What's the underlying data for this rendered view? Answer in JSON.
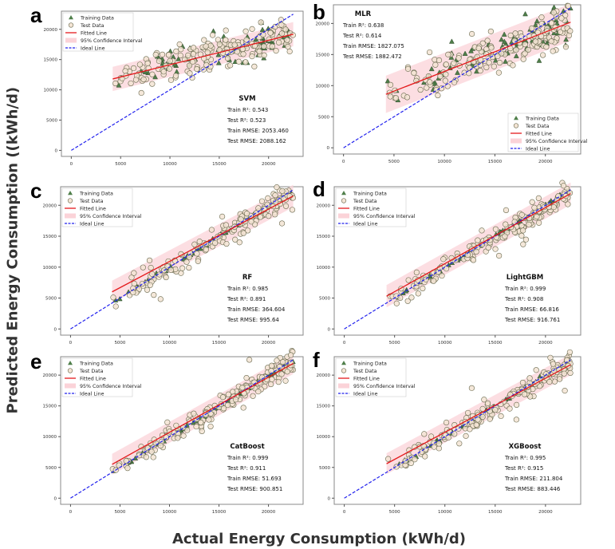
{
  "figure": {
    "ylabel": "Predicted Energy Consumption ((kWh/d)",
    "xlabel": "Actual Energy Consumption (kWh/d)"
  },
  "legend_labels": [
    "Training Data",
    "Test Data",
    "Fitted Line",
    "95% Confidence Interval",
    "Ideal Line"
  ],
  "colors": {
    "training": "#4f7f4a",
    "test_fill": "#f3e4d4",
    "test_edge": "#6b6b50",
    "fitted": "#e41a1c",
    "ci": "#fbd3d8",
    "ideal": "#2222ee"
  },
  "chart_data": [
    {
      "panel": "a",
      "type": "scatter",
      "title": "SVM",
      "metrics": [
        "Train R²:  0.543",
        "Test R²:  0.523",
        "Train RMSE:  2053.460",
        "Test RMSE:  2088.162"
      ],
      "xlim": [
        -1000,
        23500
      ],
      "ylim": [
        -1000,
        23000
      ],
      "xticks": [
        0,
        5000,
        10000,
        15000,
        20000
      ],
      "yticks": [
        0,
        5000,
        10000,
        15000,
        20000
      ],
      "fitted": [
        [
          4200,
          11800
        ],
        [
          22500,
          19200
        ]
      ],
      "ci_width": 2000,
      "ideal": [
        [
          0,
          0
        ],
        [
          22500,
          22500
        ]
      ],
      "legend": "top-left",
      "metrics_position": "bottom-right",
      "spread": 1500,
      "slope_fit": true
    },
    {
      "panel": "b",
      "type": "scatter",
      "title": "MLR",
      "metrics": [
        "Train R²:  0.638",
        "Test R²:  0.614",
        "Train RMSE:  1827.075",
        "Test RMSE:  1882.472"
      ],
      "xlim": [
        -1000,
        23500
      ],
      "ylim": [
        -1000,
        23000
      ],
      "xticks": [
        0,
        5000,
        10000,
        15000,
        20000
      ],
      "yticks": [
        0,
        5000,
        10000,
        15000,
        20000
      ],
      "fitted": [
        [
          4200,
          8600
        ],
        [
          22500,
          20200
        ]
      ],
      "ci_width": 3000,
      "ideal": [
        [
          0,
          0
        ],
        [
          22500,
          22500
        ]
      ],
      "legend": "bottom-right",
      "metrics_position": "top-left",
      "spread": 1700,
      "slope_fit": true
    },
    {
      "panel": "c",
      "type": "scatter",
      "title": "RF",
      "metrics": [
        "Train R²:  0.985",
        "Test R²:  0.891",
        "Train RMSE:  364.604",
        "Test RMSE:  995.64"
      ],
      "xlim": [
        -1000,
        23500
      ],
      "ylim": [
        -1000,
        23000
      ],
      "xticks": [
        0,
        5000,
        10000,
        15000,
        20000
      ],
      "yticks": [
        0,
        5000,
        10000,
        15000,
        20000
      ],
      "fitted": [
        [
          4200,
          6000
        ],
        [
          22500,
          21500
        ]
      ],
      "ci_width": 1800,
      "ideal": [
        [
          0,
          0
        ],
        [
          22500,
          22500
        ]
      ],
      "legend": "top-left",
      "metrics_position": "bottom-right",
      "spread": 1100,
      "slope_fit": false
    },
    {
      "panel": "d",
      "type": "scatter",
      "title": "LightGBM",
      "metrics": [
        "Train R²:  0.999",
        "Test R²:  0.908",
        "Train RMSE:  66.816",
        "Test RMSE:  916.761"
      ],
      "xlim": [
        -1000,
        23500
      ],
      "ylim": [
        -1000,
        23000
      ],
      "xticks": [
        0,
        5000,
        10000,
        15000,
        20000
      ],
      "yticks": [
        0,
        5000,
        10000,
        15000,
        20000
      ],
      "fitted": [
        [
          4200,
          5300
        ],
        [
          22500,
          21900
        ]
      ],
      "ci_width": 1800,
      "ideal": [
        [
          0,
          0
        ],
        [
          22500,
          22500
        ]
      ],
      "legend": "top-left",
      "metrics_position": "bottom-right",
      "spread": 1000,
      "slope_fit": false
    },
    {
      "panel": "e",
      "type": "scatter",
      "title": "CatBoost",
      "metrics": [
        "Train R²:  0.999",
        "Test R²:  0.911",
        "Train RMSE:  51.693",
        "Test RMSE:  900.851"
      ],
      "xlim": [
        -1000,
        23500
      ],
      "ylim": [
        -1000,
        23000
      ],
      "xticks": [
        0,
        5000,
        10000,
        15000,
        20000
      ],
      "yticks": [
        0,
        5000,
        10000,
        15000,
        20000
      ],
      "fitted": [
        [
          4200,
          5500
        ],
        [
          22500,
          21900
        ]
      ],
      "ci_width": 1700,
      "ideal": [
        [
          0,
          0
        ],
        [
          22500,
          22500
        ]
      ],
      "legend": "top-left",
      "metrics_position": "bottom-right",
      "spread": 1000,
      "slope_fit": false
    },
    {
      "panel": "f",
      "type": "scatter",
      "title": "XGBoost",
      "metrics": [
        "Train R²:  0.995",
        "Test R²:  0.915",
        "Train RMSE:  211.804",
        "Test RMSE:  883.446"
      ],
      "xlim": [
        -1000,
        23500
      ],
      "ylim": [
        -1000,
        23000
      ],
      "xticks": [
        0,
        5000,
        10000,
        15000,
        20000
      ],
      "yticks": [
        0,
        5000,
        10000,
        15000,
        20000
      ],
      "fitted": [
        [
          4200,
          5600
        ],
        [
          22500,
          21700
        ]
      ],
      "ci_width": 1700,
      "ideal": [
        [
          0,
          0
        ],
        [
          22500,
          22500
        ]
      ],
      "legend": "top-left",
      "metrics_position": "bottom-right",
      "spread": 1000,
      "slope_fit": false
    }
  ]
}
